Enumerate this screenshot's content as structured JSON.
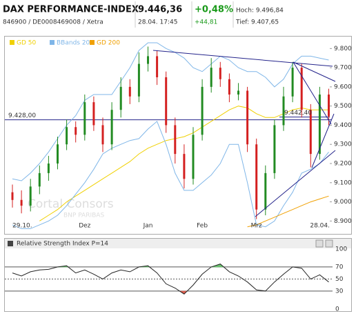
{
  "header": {
    "title": "DAX PERFORMANCE-INDEX",
    "subtitle": "846900 / DE0008469008 / Xetra",
    "price": "9.446,36",
    "time": "28.04. 17:45",
    "change_pct": "+0,48%",
    "change_abs": "+44,81",
    "high": "Hoch: 9.496,84",
    "low": "Tief: 9.407,65"
  },
  "watermark": [
    "Cortal Consors",
    "BNP PARIBAS"
  ],
  "chart_data": [
    {
      "type": "candlestick",
      "categories": [
        "29.10.",
        null,
        null,
        null,
        null,
        null,
        null,
        null,
        "Dez",
        null,
        null,
        null,
        null,
        null,
        null,
        "Jan",
        null,
        null,
        null,
        null,
        null,
        "Feb",
        null,
        null,
        null,
        null,
        null,
        "Mrz",
        null,
        null,
        null,
        null,
        null,
        null,
        null,
        "28.04."
      ],
      "open": [
        9050,
        9010,
        8980,
        9080,
        9150,
        9200,
        9300,
        9390,
        9350,
        9520,
        9400,
        9300,
        9480,
        9600,
        9550,
        9720,
        9760,
        9650,
        9400,
        9250,
        9120,
        9350,
        9600,
        9700,
        9640,
        9560,
        9580,
        9300,
        8960,
        9150,
        9400,
        9550,
        9700,
        9480,
        9250,
        9560
      ],
      "high": [
        9090,
        9060,
        9120,
        9190,
        9240,
        9340,
        9430,
        9420,
        9560,
        9550,
        9440,
        9520,
        9650,
        9640,
        9780,
        9810,
        9790,
        9680,
        9440,
        9300,
        9390,
        9640,
        9750,
        9730,
        9670,
        9620,
        9600,
        9330,
        9190,
        9430,
        9600,
        9730,
        9720,
        9510,
        9600,
        9590
      ],
      "low": [
        8970,
        8940,
        8950,
        9040,
        9110,
        9170,
        9270,
        9310,
        9320,
        9370,
        9260,
        9270,
        9440,
        9510,
        9520,
        9680,
        9610,
        9360,
        9200,
        9070,
        9090,
        9320,
        9570,
        9600,
        9520,
        9530,
        9260,
        8910,
        8930,
        9120,
        9370,
        9520,
        9440,
        9180,
        9220,
        9400
      ],
      "close": [
        9010,
        8980,
        9080,
        9150,
        9200,
        9300,
        9390,
        9350,
        9520,
        9400,
        9300,
        9480,
        9600,
        9550,
        9720,
        9760,
        9650,
        9400,
        9250,
        9120,
        9350,
        9600,
        9700,
        9640,
        9560,
        9580,
        9300,
        8960,
        9150,
        9400,
        9550,
        9700,
        9480,
        9250,
        9560,
        9446
      ],
      "up_color": "#228b22",
      "down_color": "#d42020",
      "lines": [
        {
          "name": "GD 50",
          "color": "#f0d000",
          "values": [
            null,
            null,
            null,
            8900,
            8930,
            8960,
            9000,
            9030,
            9060,
            9090,
            9120,
            9150,
            9180,
            9210,
            9250,
            9280,
            9300,
            9320,
            9330,
            9340,
            9360,
            9390,
            9420,
            9450,
            9480,
            9500,
            9490,
            9460,
            9440,
            9440,
            9460,
            9480,
            9490,
            9480,
            9480,
            9480
          ]
        },
        {
          "name": "BBands 20",
          "color": "#7fb6e8",
          "upper": [
            9120,
            9110,
            9150,
            9200,
            9260,
            9330,
            9400,
            9450,
            9530,
            9560,
            9560,
            9560,
            9630,
            9700,
            9790,
            9830,
            9830,
            9800,
            9780,
            9750,
            9700,
            9680,
            9720,
            9760,
            9740,
            9700,
            9680,
            9680,
            9650,
            9600,
            9640,
            9720,
            9760,
            9760,
            9750,
            9740
          ],
          "lower": [
            8880,
            8860,
            8860,
            8880,
            8900,
            8930,
            8980,
            9040,
            9100,
            9170,
            9250,
            9280,
            9300,
            9320,
            9330,
            9380,
            9420,
            9300,
            9150,
            9060,
            9060,
            9100,
            9140,
            9200,
            9300,
            9300,
            9100,
            8880,
            8870,
            8900,
            8980,
            9050,
            9150,
            9170,
            9200,
            9260
          ]
        },
        {
          "name": "GD 200",
          "color": "#f0a000",
          "values": [
            null,
            null,
            null,
            null,
            null,
            null,
            null,
            null,
            null,
            null,
            null,
            null,
            null,
            null,
            null,
            null,
            null,
            null,
            null,
            null,
            null,
            null,
            null,
            null,
            null,
            null,
            8870,
            8880,
            8900,
            8920,
            8940,
            8960,
            8980,
            9000,
            9015,
            9030
          ]
        }
      ],
      "ylim": [
        8840,
        9830
      ],
      "yticks": [
        {
          "value": 9800,
          "label": "9.800"
        },
        {
          "value": 9700,
          "label": "9.700"
        },
        {
          "value": 9600,
          "label": "9.600"
        },
        {
          "value": 9500,
          "label": "9.500"
        },
        {
          "value": 9400,
          "label": "9.400"
        },
        {
          "value": 9300,
          "label": "9.300"
        },
        {
          "value": 9200,
          "label": "9.200"
        },
        {
          "value": 9100,
          "label": "9.100"
        },
        {
          "value": 9000,
          "label": "9.000"
        },
        {
          "value": 8900,
          "label": "8.900"
        }
      ],
      "hline": {
        "value": 9428,
        "label": "9.428,00"
      },
      "annotation": {
        "value": 9442.4,
        "label": "9.442,40"
      }
    },
    {
      "type": "line",
      "title": "Relative Strength Index P=14",
      "color": "#222222",
      "over_color": "#6cc070",
      "under_color": "#e06050",
      "values": [
        60,
        55,
        62,
        65,
        66,
        70,
        72,
        60,
        65,
        58,
        50,
        60,
        65,
        62,
        70,
        72,
        60,
        42,
        35,
        25,
        40,
        58,
        70,
        75,
        62,
        55,
        45,
        32,
        30,
        45,
        58,
        70,
        68,
        50,
        57,
        45
      ],
      "ylim": [
        0,
        100
      ],
      "yticks": [
        100,
        70,
        50,
        30,
        0
      ]
    }
  ]
}
